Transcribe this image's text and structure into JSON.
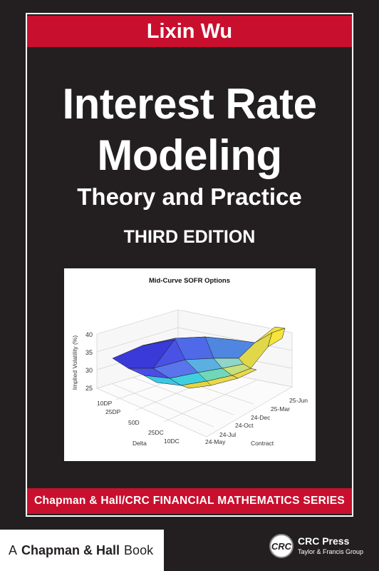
{
  "cover": {
    "author": "Lixin Wu",
    "title_line1": "Interest Rate",
    "title_line2": "Modeling",
    "subtitle": "Theory and Practice",
    "edition": "THIRD EDITION",
    "series": "Chapman & Hall/CRC FINANCIAL MATHEMATICS SERIES",
    "colors": {
      "background": "#231f20",
      "accent_red": "#c8102e",
      "text": "#ffffff"
    }
  },
  "footer": {
    "publisher_prefix": "A",
    "publisher_name": "Chapman & Hall",
    "publisher_suffix": "Book",
    "crc_logo_text": "CRC",
    "crc_press": "CRC Press",
    "crc_group": "Taylor & Francis Group"
  },
  "chart_data": {
    "type": "surface",
    "title": "Mid-Curve SOFR Options",
    "zlabel": "Implied Volatility (%)",
    "xlabel": "Delta",
    "ylabel": "Contract",
    "zlim": [
      25,
      40
    ],
    "z_ticks": [
      "25",
      "30",
      "35",
      "40"
    ],
    "delta_ticks": [
      "10DP",
      "25DP",
      "50D",
      "25DC",
      "10DC"
    ],
    "contract_ticks": [
      "24-May",
      "24-Jul",
      "24-Oct",
      "24-Dec",
      "25-Mar",
      "25-Jun"
    ]
  }
}
